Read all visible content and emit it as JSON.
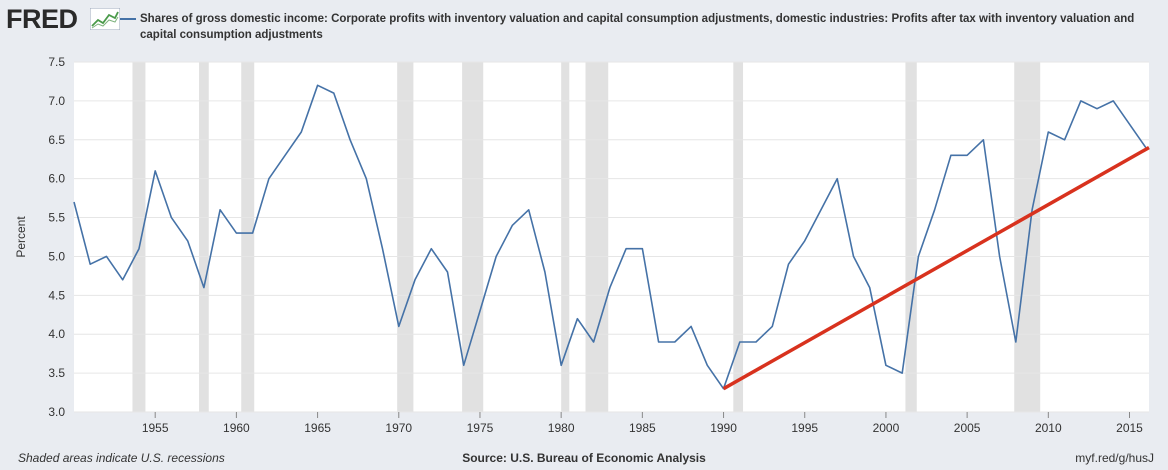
{
  "logo": {
    "text": "FRED",
    "icon": "fred-graph-icon"
  },
  "chart_data": {
    "type": "line",
    "title": "Shares of gross domestic income: Corporate profits with inventory valuation and capital consumption adjustments, domestic industries: Profits after tax with inventory valuation and capital consumption adjustments",
    "ylabel": "Percent",
    "xlabel": "",
    "ylim": [
      3.0,
      7.5
    ],
    "xlim": [
      1950,
      2016.2
    ],
    "yticks": [
      "3.0",
      "3.5",
      "4.0",
      "4.5",
      "5.0",
      "5.5",
      "6.0",
      "6.5",
      "7.0",
      "7.5"
    ],
    "xticks": [
      "1955",
      "1960",
      "1965",
      "1970",
      "1975",
      "1980",
      "1985",
      "1990",
      "1995",
      "2000",
      "2005",
      "2010",
      "2015"
    ],
    "grid": "horizontal",
    "series": [
      {
        "name": "Shares of gross domestic income: Corporate profits with inventory valuation and capital consumption adjustments, domestic industries: Profits after tax with inventory valuation and capital consumption adjustments",
        "color": "#4572a7",
        "x": [
          1950,
          1951,
          1952,
          1953,
          1954,
          1955,
          1956,
          1957,
          1958,
          1959,
          1960,
          1961,
          1962,
          1963,
          1964,
          1965,
          1966,
          1967,
          1968,
          1969,
          1970,
          1971,
          1972,
          1973,
          1974,
          1975,
          1976,
          1977,
          1978,
          1979,
          1980,
          1981,
          1982,
          1983,
          1984,
          1985,
          1986,
          1987,
          1988,
          1989,
          1990,
          1991,
          1992,
          1993,
          1994,
          1995,
          1996,
          1997,
          1998,
          1999,
          2000,
          2001,
          2002,
          2003,
          2004,
          2005,
          2006,
          2007,
          2008,
          2009,
          2010,
          2011,
          2012,
          2013,
          2014,
          2015,
          2016
        ],
        "values": [
          5.7,
          4.9,
          5.0,
          4.7,
          5.1,
          6.1,
          5.5,
          5.2,
          4.6,
          5.6,
          5.3,
          5.3,
          6.0,
          6.3,
          6.6,
          7.2,
          7.1,
          6.5,
          6.0,
          5.1,
          4.1,
          4.7,
          5.1,
          4.8,
          3.6,
          4.3,
          5.0,
          5.4,
          5.6,
          4.8,
          3.6,
          4.2,
          3.9,
          4.6,
          5.1,
          5.1,
          3.9,
          3.9,
          4.1,
          3.6,
          3.3,
          3.9,
          3.9,
          4.1,
          4.9,
          5.2,
          5.6,
          6.0,
          5.0,
          4.6,
          3.6,
          3.5,
          5.0,
          5.6,
          6.3,
          6.3,
          6.5,
          5.0,
          3.9,
          5.6,
          6.6,
          6.5,
          7.0,
          6.9,
          7.0,
          6.7,
          6.4
        ]
      }
    ],
    "recessions": [
      [
        1953.6,
        1954.4
      ],
      [
        1957.7,
        1958.3
      ],
      [
        1960.3,
        1961.1
      ],
      [
        1969.9,
        1970.9
      ],
      [
        1973.9,
        1975.2
      ],
      [
        1980.0,
        1980.5
      ],
      [
        1981.5,
        1982.9
      ],
      [
        1990.6,
        1991.2
      ],
      [
        2001.2,
        2001.9
      ],
      [
        2007.9,
        2009.5
      ]
    ],
    "annotation_line": {
      "color": "#d8321e",
      "from": [
        1990,
        3.3
      ],
      "to": [
        2016.2,
        6.4
      ]
    },
    "recession_color": "#e1e1e1"
  },
  "footer": {
    "note": "Shaded areas indicate U.S. recessions",
    "source": "Source: U.S. Bureau of Economic Analysis",
    "link": "myf.red/g/husJ"
  }
}
